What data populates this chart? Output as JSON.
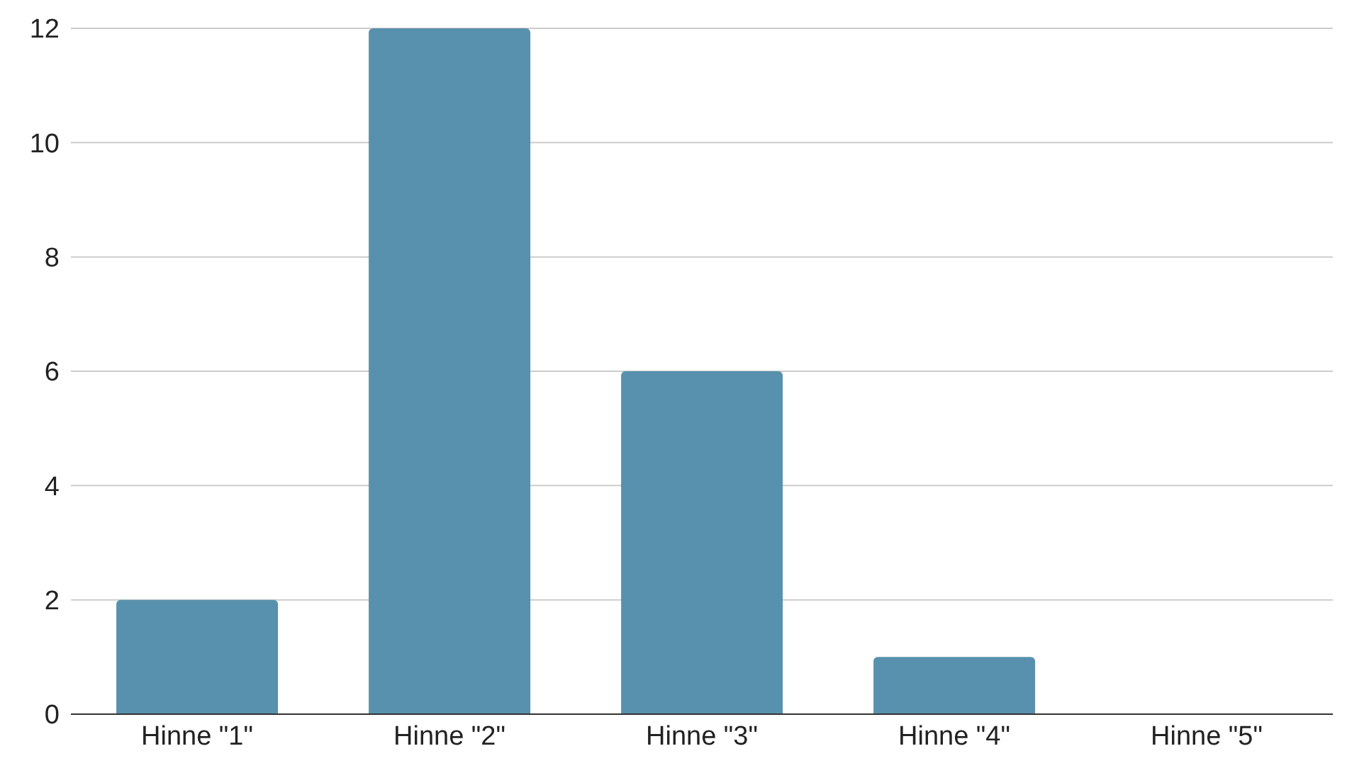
{
  "chart_data": {
    "type": "bar",
    "categories": [
      "Hinne \"1\"",
      "Hinne \"2\"",
      "Hinne \"3\"",
      "Hinne \"4\"",
      "Hinne \"5\""
    ],
    "values": [
      2,
      12,
      6,
      1,
      0
    ],
    "color": "#5891ad",
    "ylim": [
      0,
      12
    ],
    "yticks": [
      0,
      2,
      4,
      6,
      8,
      10,
      12
    ],
    "grid": "y"
  }
}
